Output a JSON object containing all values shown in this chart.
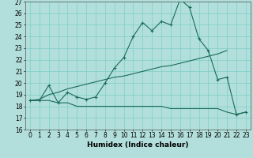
{
  "x": [
    0,
    1,
    2,
    3,
    4,
    5,
    6,
    7,
    8,
    9,
    10,
    11,
    12,
    13,
    14,
    15,
    16,
    17,
    18,
    19,
    20,
    21,
    22,
    23
  ],
  "line_main": [
    18.5,
    18.5,
    19.8,
    18.3,
    19.2,
    18.8,
    18.6,
    18.8,
    20.0,
    21.3,
    22.2,
    24.0,
    25.2,
    24.5,
    25.3,
    25.0,
    27.2,
    26.5,
    23.8,
    22.8,
    20.3,
    20.5,
    17.3,
    17.5
  ],
  "line_trend": [
    18.5,
    18.6,
    19.0,
    19.2,
    19.5,
    19.7,
    19.9,
    20.1,
    20.3,
    20.5,
    20.6,
    20.8,
    21.0,
    21.2,
    21.4,
    21.5,
    21.7,
    21.9,
    22.1,
    22.3,
    22.5,
    22.8,
    null,
    null
  ],
  "line_flat": [
    18.5,
    18.5,
    18.5,
    18.3,
    18.3,
    18.0,
    18.0,
    18.0,
    18.0,
    18.0,
    18.0,
    18.0,
    18.0,
    18.0,
    18.0,
    17.8,
    17.8,
    17.8,
    17.8,
    17.8,
    17.8,
    17.5,
    17.3,
    17.5
  ],
  "bg_color": "#b2dfdb",
  "line_color": "#1a6b5a",
  "grid_color": "#7ecec8",
  "ylim": [
    16,
    27
  ],
  "yticks": [
    16,
    17,
    18,
    19,
    20,
    21,
    22,
    23,
    24,
    25,
    26,
    27
  ],
  "xlabel": "Humidex (Indice chaleur)",
  "xlabel_fontsize": 6.5,
  "tick_fontsize": 5.5
}
